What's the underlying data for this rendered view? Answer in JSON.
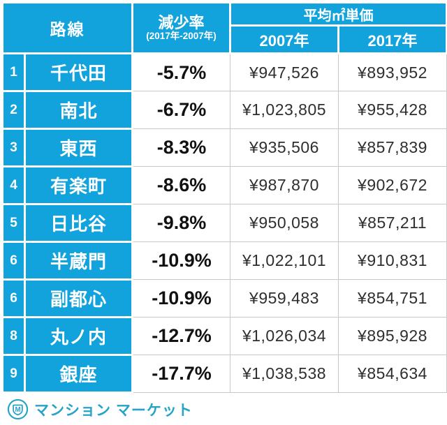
{
  "header": {
    "route": "路線",
    "decrease_rate": "減少率",
    "decrease_rate_note": "(2017年-2007年)",
    "avg_price": "平均㎡単価",
    "col_2007": "2007年",
    "col_2017": "2017年"
  },
  "chart_data": {
    "type": "table",
    "columns": [
      "路線",
      "減少率(2017年-2007年)",
      "平均㎡単価 2007年",
      "平均㎡単価 2017年"
    ],
    "rows": [
      {
        "rank": "1",
        "line": "千代田",
        "rate": "-5.7%",
        "price_2007": "¥947,526",
        "price_2017": "¥893,952"
      },
      {
        "rank": "2",
        "line": "南北",
        "rate": "-6.7%",
        "price_2007": "¥1,023,805",
        "price_2017": "¥955,428"
      },
      {
        "rank": "3",
        "line": "東西",
        "rate": "-8.3%",
        "price_2007": "¥935,506",
        "price_2017": "¥857,839"
      },
      {
        "rank": "4",
        "line": "有楽町",
        "rate": "-8.6%",
        "price_2007": "¥987,870",
        "price_2017": "¥902,672"
      },
      {
        "rank": "5",
        "line": "日比谷",
        "rate": "-9.8%",
        "price_2007": "¥950,058",
        "price_2017": "¥857,211"
      },
      {
        "rank": "6",
        "line": "半蔵門",
        "rate": "-10.9%",
        "price_2007": "¥1,022,101",
        "price_2017": "¥910,831"
      },
      {
        "rank": "6",
        "line": "副都心",
        "rate": "-10.9%",
        "price_2007": "¥959,483",
        "price_2017": "¥854,751"
      },
      {
        "rank": "8",
        "line": "丸ノ内",
        "rate": "-12.7%",
        "price_2007": "¥1,026,034",
        "price_2017": "¥895,928"
      },
      {
        "rank": "9",
        "line": "銀座",
        "rate": "-17.7%",
        "price_2007": "¥1,038,538",
        "price_2017": "¥854,634"
      }
    ]
  },
  "footer": {
    "logo_icon": "mansion-market-shield-m-icon",
    "logo_letter": "M",
    "logo_text": "マンション マーケット"
  },
  "colors": {
    "primary_blue": "#12a3dd",
    "logo_teal": "#26a4c6",
    "grid_gray": "#c8c8c8"
  }
}
